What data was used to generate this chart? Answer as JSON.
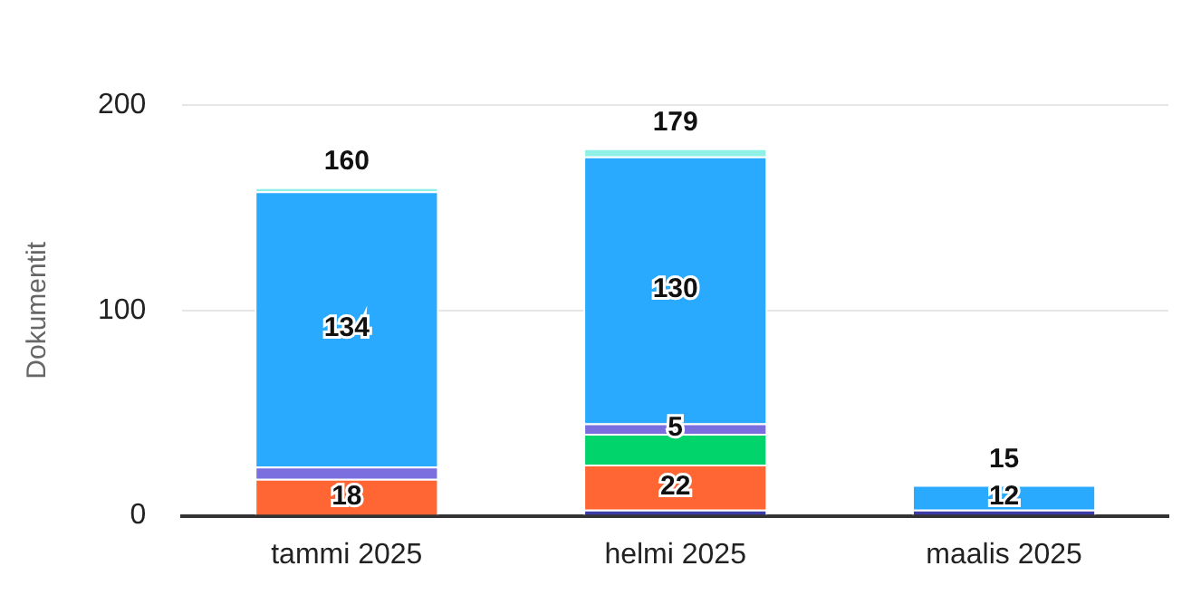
{
  "chart_data": {
    "type": "bar",
    "stacked": true,
    "ylabel": "Dokumentit",
    "categories": [
      "tammi 2025",
      "helmi 2025",
      "maalis 2025"
    ],
    "series": [
      {
        "color": "#3c3ca8",
        "values": [
          0,
          3,
          3
        ]
      },
      {
        "color": "#ff6633",
        "values": [
          18,
          22,
          0
        ],
        "value_labels": [
          "18",
          "22",
          null
        ]
      },
      {
        "color": "#00d46a",
        "values": [
          0,
          15,
          0
        ]
      },
      {
        "color": "#7b6fe0",
        "values": [
          6,
          5,
          0
        ],
        "value_labels": [
          null,
          "5",
          null
        ]
      },
      {
        "color": "#29aaff",
        "values": [
          134,
          130,
          12
        ],
        "value_labels": [
          "134",
          "130",
          "12"
        ]
      },
      {
        "color": "#8ff0e6",
        "values": [
          2,
          4,
          0
        ]
      }
    ],
    "totals": [
      "160",
      "179",
      "15"
    ],
    "ylim": [
      0,
      200
    ],
    "yticks": [
      0,
      100,
      200
    ],
    "grid": "y",
    "legend": false
  }
}
